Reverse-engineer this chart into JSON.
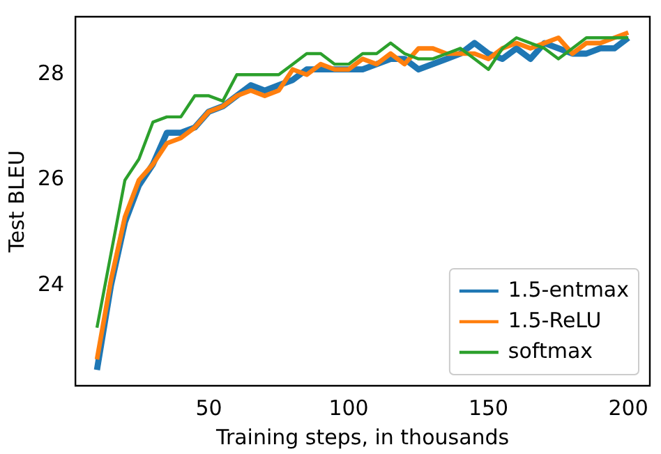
{
  "chart_data": {
    "type": "line",
    "xlabel": "Training steps, in thousands",
    "ylabel": "Test BLEU",
    "x": [
      10,
      15,
      20,
      25,
      30,
      35,
      40,
      45,
      50,
      55,
      60,
      65,
      70,
      75,
      80,
      85,
      90,
      95,
      100,
      105,
      110,
      115,
      120,
      125,
      130,
      135,
      140,
      145,
      150,
      155,
      160,
      165,
      170,
      175,
      180,
      185,
      190,
      195,
      200
    ],
    "series": [
      {
        "name": "1.5-entmax",
        "color": "#1f77b4",
        "values": [
          22.4,
          24.0,
          25.2,
          25.9,
          26.3,
          26.9,
          26.9,
          27.0,
          27.3,
          27.4,
          27.6,
          27.8,
          27.7,
          27.8,
          27.9,
          28.1,
          28.1,
          28.1,
          28.1,
          28.1,
          28.2,
          28.3,
          28.3,
          28.1,
          28.2,
          28.3,
          28.4,
          28.6,
          28.4,
          28.3,
          28.5,
          28.3,
          28.6,
          28.5,
          28.4,
          28.4,
          28.5,
          28.5,
          28.7
        ]
      },
      {
        "name": "1.5-ReLU",
        "color": "#ff7f0e",
        "values": [
          22.6,
          24.1,
          25.3,
          26.0,
          26.3,
          26.7,
          26.8,
          27.0,
          27.3,
          27.4,
          27.6,
          27.7,
          27.6,
          27.7,
          28.1,
          28.0,
          28.2,
          28.1,
          28.1,
          28.3,
          28.2,
          28.4,
          28.2,
          28.5,
          28.5,
          28.4,
          28.4,
          28.4,
          28.3,
          28.5,
          28.6,
          28.5,
          28.6,
          28.7,
          28.4,
          28.6,
          28.6,
          28.7,
          28.8
        ]
      },
      {
        "name": "softmax",
        "color": "#2ca02c",
        "values": [
          23.2,
          24.6,
          26.0,
          26.4,
          27.1,
          27.2,
          27.2,
          27.6,
          27.6,
          27.5,
          28.0,
          28.0,
          28.0,
          28.0,
          28.2,
          28.4,
          28.4,
          28.2,
          28.2,
          28.4,
          28.4,
          28.6,
          28.4,
          28.3,
          28.3,
          28.4,
          28.5,
          28.3,
          28.1,
          28.5,
          28.7,
          28.6,
          28.5,
          28.3,
          28.5,
          28.7,
          28.7,
          28.7,
          28.7
        ]
      }
    ],
    "xlim": [
      2.3,
      207.7
    ],
    "xticks": [
      50,
      100,
      150,
      200
    ],
    "ylim": [
      22.1,
      29.1
    ],
    "yticks": [
      24,
      26,
      28
    ],
    "grid": false,
    "legend": "bottom right",
    "marker": "none",
    "line_style": "solid"
  }
}
